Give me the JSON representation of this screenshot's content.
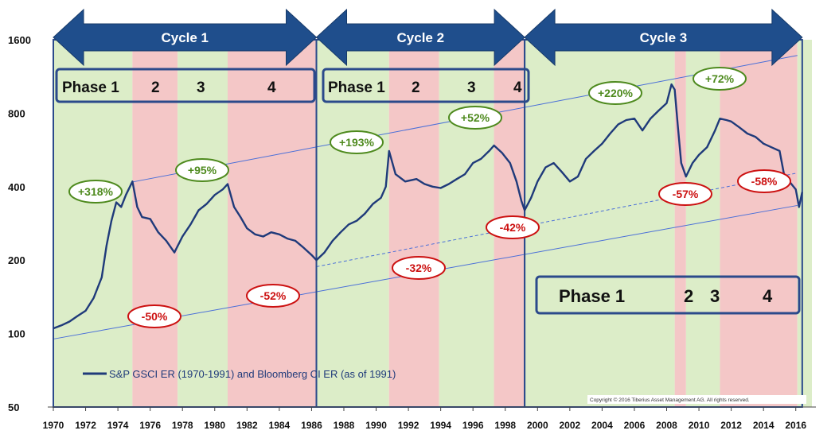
{
  "chart_data": {
    "type": "line",
    "legend": "S&P GSCI ER (1970-1991) and Bloomberg CI ER (as of 1991)",
    "copyright": "Copyright © 2016 Tiberius Asset Management AG. All rights reserved.",
    "x_ticks": [
      "1970",
      "1972",
      "1974",
      "1976",
      "1978",
      "1980",
      "1982",
      "1984",
      "1986",
      "1988",
      "1990",
      "1992",
      "1994",
      "1996",
      "1998",
      "2000",
      "2002",
      "2004",
      "2006",
      "2008",
      "2010",
      "2012",
      "2014",
      "2016"
    ],
    "y_ticks": [
      "50",
      "100",
      "200",
      "400",
      "800",
      "1600"
    ],
    "xlim": [
      1970,
      2017
    ],
    "ylim": [
      50,
      1600
    ],
    "y_scale": "log",
    "cycles": [
      {
        "label": "Cycle 1",
        "start": 1970,
        "end": 1986.3
      },
      {
        "label": "Cycle 2",
        "start": 1986.3,
        "end": 1999.2
      },
      {
        "label": "Cycle 3",
        "start": 1999.2,
        "end": 2016.4
      }
    ],
    "phase_boxes": [
      {
        "labels": [
          "Phase 1",
          "2",
          "3",
          "4"
        ]
      },
      {
        "labels": [
          "Phase 1",
          "2",
          "3",
          "4"
        ]
      },
      {
        "labels": [
          "Phase 1",
          "2",
          "3",
          "4"
        ]
      }
    ],
    "phase_bands": [
      {
        "start": 1970,
        "end": 1974.9,
        "phase": "up"
      },
      {
        "start": 1974.9,
        "end": 1977.7,
        "phase": "down"
      },
      {
        "start": 1977.7,
        "end": 1980.8,
        "phase": "up"
      },
      {
        "start": 1980.8,
        "end": 1986.3,
        "phase": "down"
      },
      {
        "start": 1986.3,
        "end": 1990.8,
        "phase": "up"
      },
      {
        "start": 1990.8,
        "end": 1993.9,
        "phase": "down"
      },
      {
        "start": 1993.9,
        "end": 1997.3,
        "phase": "up"
      },
      {
        "start": 1997.3,
        "end": 1999.2,
        "phase": "down"
      },
      {
        "start": 1999.2,
        "end": 2008.5,
        "phase": "up"
      },
      {
        "start": 2008.5,
        "end": 2009.2,
        "phase": "down"
      },
      {
        "start": 2009.2,
        "end": 2011.3,
        "phase": "up"
      },
      {
        "start": 2011.3,
        "end": 2016.1,
        "phase": "down"
      },
      {
        "start": 2016.1,
        "end": 2017,
        "phase": "up"
      }
    ],
    "gain_annotations": [
      "+318%",
      "+95%",
      "+193%",
      "+52%",
      "+220%",
      "+72%"
    ],
    "loss_annotations": [
      "-50%",
      "-52%",
      "-32%",
      "-42%",
      "-57%",
      "-58%"
    ],
    "series": [
      {
        "x": [
          1970,
          1970.5,
          1971,
          1971.5,
          1972,
          1972.5,
          1973,
          1973.3,
          1973.6,
          1973.9,
          1974.2,
          1974.5,
          1974.9,
          1975.2,
          1975.5,
          1976,
          1976.5,
          1977,
          1977.5,
          1978,
          1978.5,
          1979,
          1979.5,
          1980,
          1980.5,
          1980.8,
          1981.2,
          1981.6,
          1982,
          1982.5,
          1983,
          1983.5,
          1984,
          1984.5,
          1985,
          1985.5,
          1986,
          1986.3,
          1986.8,
          1987.3,
          1987.8,
          1988.3,
          1988.8,
          1989.3,
          1989.8,
          1990.3,
          1990.6,
          1990.8,
          1991.2,
          1991.8,
          1992.5,
          1993,
          1993.5,
          1994,
          1994.5,
          1995,
          1995.5,
          1996,
          1996.5,
          1997,
          1997.3,
          1997.8,
          1998.3,
          1998.7,
          1999,
          1999.2,
          1999.6,
          2000,
          2000.5,
          2001,
          2001.5,
          2002,
          2002.5,
          2003,
          2003.5,
          2004,
          2004.5,
          2005,
          2005.5,
          2006,
          2006.5,
          2007,
          2007.5,
          2008,
          2008.3,
          2008.5,
          2008.7,
          2008.9,
          2009.2,
          2009.6,
          2010,
          2010.5,
          2011,
          2011.3,
          2011.7,
          2012,
          2012.5,
          2013,
          2013.5,
          2014,
          2014.5,
          2015,
          2015.3,
          2015.6,
          2016,
          2016.2,
          2016.4
        ],
        "y": [
          105,
          108,
          112,
          118,
          124,
          140,
          170,
          230,
          290,
          345,
          330,
          370,
          420,
          330,
          300,
          295,
          260,
          240,
          215,
          250,
          280,
          320,
          340,
          370,
          390,
          410,
          330,
          300,
          270,
          255,
          250,
          260,
          255,
          245,
          240,
          225,
          210,
          200,
          215,
          240,
          260,
          280,
          290,
          310,
          340,
          360,
          400,
          560,
          450,
          420,
          430,
          410,
          400,
          395,
          410,
          430,
          450,
          500,
          520,
          560,
          590,
          550,
          500,
          420,
          350,
          320,
          360,
          420,
          480,
          500,
          460,
          420,
          440,
          520,
          560,
          600,
          660,
          720,
          750,
          760,
          680,
          760,
          820,
          880,
          1050,
          1000,
          700,
          500,
          440,
          500,
          540,
          580,
          680,
          760,
          750,
          740,
          700,
          660,
          640,
          600,
          580,
          560,
          440,
          420,
          390,
          330,
          380
        ]
      }
    ],
    "trend_lines": [
      {
        "name": "upper",
        "x": [
          1974.9,
          2016.1
        ],
        "y": [
          418,
          1380
        ]
      },
      {
        "name": "lower",
        "x": [
          1970,
          2016.1
        ],
        "y": [
          95,
          335
        ]
      },
      {
        "name": "mid",
        "x": [
          1986.3,
          2016.1
        ],
        "y": [
          188,
          455
        ]
      }
    ]
  }
}
